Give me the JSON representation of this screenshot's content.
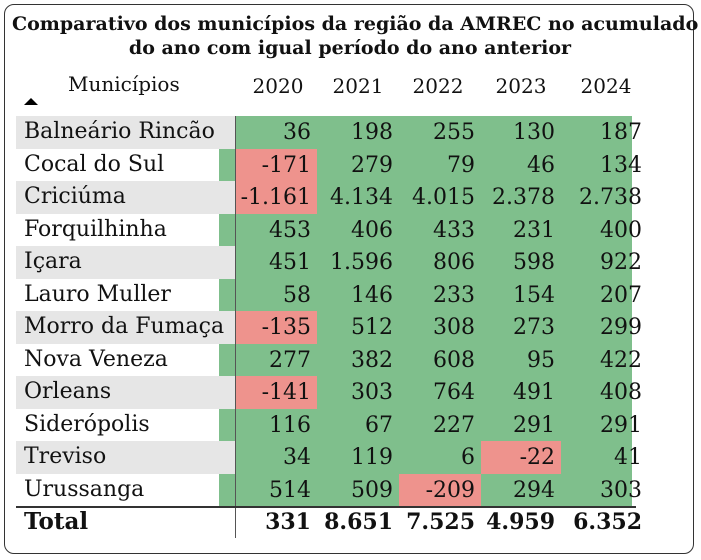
{
  "title": {
    "line1": "Comparativo dos municípios da região da AMREC no acumulado",
    "line2": "do ano com igual período do ano anterior"
  },
  "header": {
    "municipios_label": "Municípios",
    "years": [
      "2020",
      "2021",
      "2022",
      "2023",
      "2024"
    ]
  },
  "colors": {
    "positive": "#7fbf8c",
    "negative": "#ee938d",
    "alt_row": "#e6e6e6"
  },
  "rows": [
    {
      "name": "Balneário Rincão",
      "values": [
        "36",
        "198",
        "255",
        "130",
        "187"
      ],
      "negative": [
        false,
        false,
        false,
        false,
        false
      ]
    },
    {
      "name": "Cocal do Sul",
      "values": [
        "-171",
        "279",
        "79",
        "46",
        "134"
      ],
      "negative": [
        true,
        false,
        false,
        false,
        false
      ]
    },
    {
      "name": "Criciúma",
      "values": [
        "-1.161",
        "4.134",
        "4.015",
        "2.378",
        "2.738"
      ],
      "negative": [
        true,
        false,
        false,
        false,
        false
      ]
    },
    {
      "name": "Forquilhinha",
      "values": [
        "453",
        "406",
        "433",
        "231",
        "400"
      ],
      "negative": [
        false,
        false,
        false,
        false,
        false
      ]
    },
    {
      "name": "Içara",
      "values": [
        "451",
        "1.596",
        "806",
        "598",
        "922"
      ],
      "negative": [
        false,
        false,
        false,
        false,
        false
      ]
    },
    {
      "name": "Lauro Muller",
      "values": [
        "58",
        "146",
        "233",
        "154",
        "207"
      ],
      "negative": [
        false,
        false,
        false,
        false,
        false
      ]
    },
    {
      "name": "Morro da Fumaça",
      "values": [
        "-135",
        "512",
        "308",
        "273",
        "299"
      ],
      "negative": [
        true,
        false,
        false,
        false,
        false
      ]
    },
    {
      "name": "Nova Veneza",
      "values": [
        "277",
        "382",
        "608",
        "95",
        "422"
      ],
      "negative": [
        false,
        false,
        false,
        false,
        false
      ]
    },
    {
      "name": "Orleans",
      "values": [
        "-141",
        "303",
        "764",
        "491",
        "408"
      ],
      "negative": [
        true,
        false,
        false,
        false,
        false
      ]
    },
    {
      "name": "Siderópolis",
      "values": [
        "116",
        "67",
        "227",
        "291",
        "291"
      ],
      "negative": [
        false,
        false,
        false,
        false,
        false
      ]
    },
    {
      "name": "Treviso",
      "values": [
        "34",
        "119",
        "6",
        "-22",
        "41"
      ],
      "negative": [
        false,
        false,
        false,
        true,
        false
      ]
    },
    {
      "name": "Urussanga",
      "values": [
        "514",
        "509",
        "-209",
        "294",
        "303"
      ],
      "negative": [
        false,
        false,
        true,
        false,
        false
      ]
    }
  ],
  "total": {
    "label": "Total",
    "values": [
      "331",
      "8.651",
      "7.525",
      "4.959",
      "6.352"
    ]
  }
}
